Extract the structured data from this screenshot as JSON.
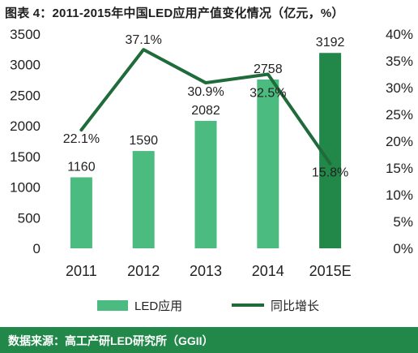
{
  "title": "图表 4：2011-2015年中国LED应用产值变化情况（亿元，%）",
  "source": "数据来源：高工产研LED研究所（GGII）",
  "colors": {
    "bar": "#4cbb7f",
    "bar_highlight": "#21884a",
    "line": "#1f6b3a",
    "footer": "#21884a"
  },
  "chart_data": {
    "type": "bar",
    "categories": [
      "2011",
      "2012",
      "2013",
      "2014",
      "2015E"
    ],
    "series": [
      {
        "name": "LED应用",
        "type": "bar",
        "axis": "left",
        "values": [
          1160,
          1590,
          2082,
          2758,
          3192
        ],
        "labels": [
          "1160",
          "1590",
          "2082",
          "2758",
          "3192"
        ]
      },
      {
        "name": "同比增长",
        "type": "line",
        "axis": "right",
        "values": [
          22.1,
          37.1,
          30.9,
          32.5,
          15.8
        ],
        "labels": [
          "22.1%",
          "37.1%",
          "30.9%",
          "32.5%",
          "15.8%"
        ]
      }
    ],
    "ylim": [
      0,
      3500
    ],
    "yticks": [
      "0",
      "500",
      "1000",
      "1500",
      "2000",
      "2500",
      "3000",
      "3500"
    ],
    "y2lim": [
      0,
      40
    ],
    "y2ticks": [
      "0%",
      "5%",
      "10%",
      "15%",
      "20%",
      "25%",
      "30%",
      "35%",
      "40%"
    ],
    "grid": false,
    "legend_position": "bottom"
  }
}
